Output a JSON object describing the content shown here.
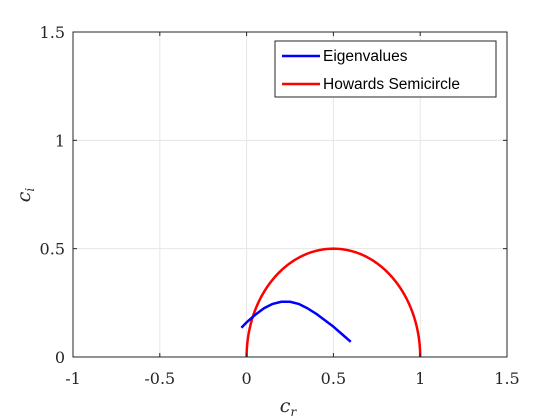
{
  "chart_data": {
    "type": "line",
    "xlabel": {
      "base": "c",
      "sub": "r"
    },
    "ylabel": {
      "base": "c",
      "sub": "i"
    },
    "xlim": [
      -1,
      1.5
    ],
    "ylim": [
      0,
      1.5
    ],
    "xticks": [
      -1,
      -0.5,
      0,
      0.5,
      1,
      1.5
    ],
    "xtick_labels": [
      "-1",
      "-0.5",
      "0",
      "0.5",
      "1",
      "1.5"
    ],
    "yticks": [
      0,
      0.5,
      1,
      1.5
    ],
    "ytick_labels": [
      "0",
      "0.5",
      "1",
      "1.5"
    ],
    "grid": true,
    "legend_position": "top-right",
    "series": [
      {
        "name": "Eigenvalues",
        "color": "#0000ff",
        "points": [
          [
            -0.03,
            0.135
          ],
          [
            0.0,
            0.16
          ],
          [
            0.05,
            0.195
          ],
          [
            0.1,
            0.225
          ],
          [
            0.15,
            0.245
          ],
          [
            0.2,
            0.255
          ],
          [
            0.25,
            0.255
          ],
          [
            0.3,
            0.245
          ],
          [
            0.35,
            0.225
          ],
          [
            0.4,
            0.2
          ],
          [
            0.45,
            0.17
          ],
          [
            0.5,
            0.14
          ],
          [
            0.55,
            0.105
          ],
          [
            0.6,
            0.07
          ]
        ]
      },
      {
        "name": "Howards Semicircle",
        "color": "#ff0000",
        "shape": "semicircle",
        "center": [
          0.5,
          0
        ],
        "radius": 0.5
      }
    ]
  }
}
